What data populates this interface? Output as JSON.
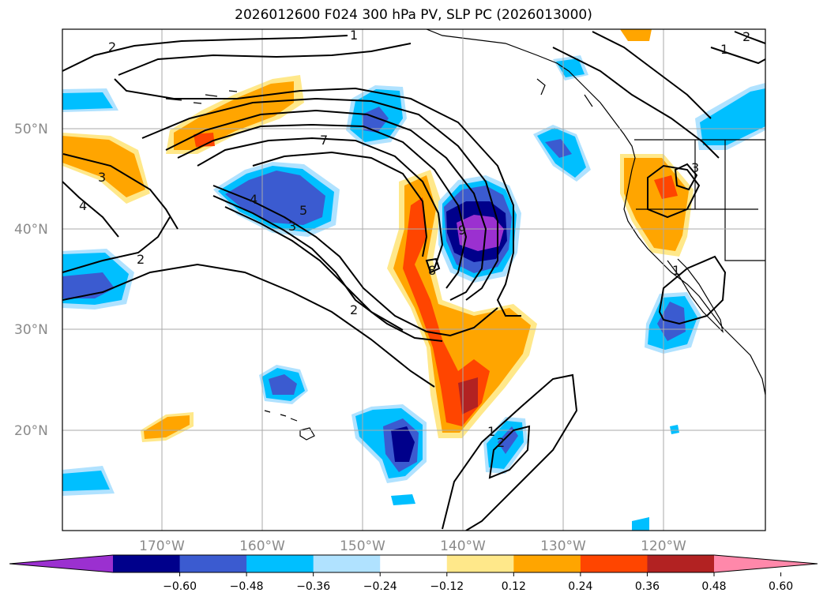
{
  "title": "2026012600 F024 300 hPa PV, SLP PC (2026013000)",
  "lat_labels": [
    "50°N",
    "40°N",
    "30°N",
    "20°N"
  ],
  "lon_labels": [
    "170°W",
    "160°W",
    "150°W",
    "140°W",
    "130°W",
    "120°W"
  ],
  "contour_labels": [
    "2",
    "1",
    "1",
    "7",
    "4",
    "5",
    "3",
    "3",
    "4",
    "2",
    "2",
    "9",
    "8",
    "1",
    "2",
    "1",
    "2",
    "3"
  ],
  "colorbar": {
    "colors": [
      "#9b30d0",
      "#00008b",
      "#3b5bd0",
      "#00bfff",
      "#b0e2ff",
      "#ffffff",
      "#ffe88a",
      "#ffa500",
      "#ff4500",
      "#b22222",
      "#ff88aa"
    ],
    "ticks": [
      "−0.60",
      "−0.48",
      "−0.36",
      "−0.24",
      "−0.12",
      "0.12",
      "0.24",
      "0.36",
      "0.48",
      "0.60"
    ]
  }
}
